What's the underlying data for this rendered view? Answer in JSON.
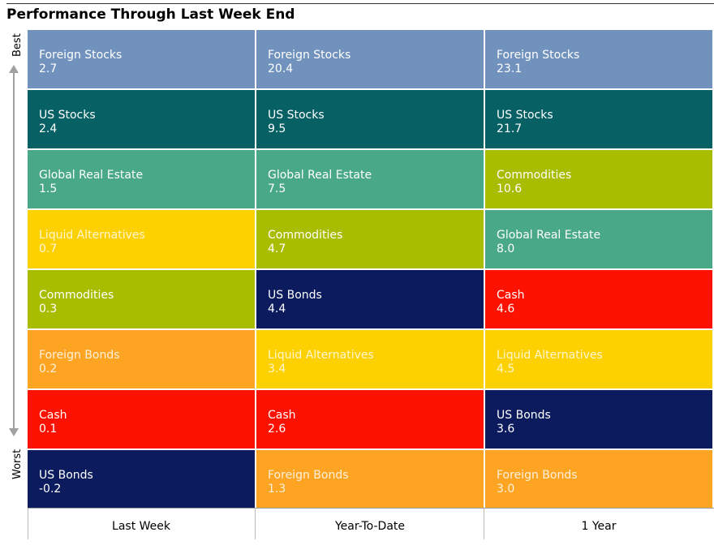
{
  "title": "Performance Through Last Week End",
  "axis": {
    "best_label": "Best",
    "worst_label": "Worst"
  },
  "chart_data": {
    "type": "table",
    "title": "Performance Through Last Week End",
    "columns": [
      "Last Week",
      "Year-To-Date",
      "1 Year"
    ],
    "rank_order": "best to worst",
    "rows": [
      [
        {
          "asset": "Foreign Stocks",
          "value": "2.7"
        },
        {
          "asset": "Foreign Stocks",
          "value": "20.4"
        },
        {
          "asset": "Foreign Stocks",
          "value": "23.1"
        }
      ],
      [
        {
          "asset": "US Stocks",
          "value": "2.4"
        },
        {
          "asset": "US Stocks",
          "value": "9.5"
        },
        {
          "asset": "US Stocks",
          "value": "21.7"
        }
      ],
      [
        {
          "asset": "Global Real Estate",
          "value": "1.5"
        },
        {
          "asset": "Global Real Estate",
          "value": "7.5"
        },
        {
          "asset": "Commodities",
          "value": "10.6"
        }
      ],
      [
        {
          "asset": "Liquid Alternatives",
          "value": "0.7"
        },
        {
          "asset": "Commodities",
          "value": "4.7"
        },
        {
          "asset": "Global Real Estate",
          "value": "8.0"
        }
      ],
      [
        {
          "asset": "Commodities",
          "value": "0.3"
        },
        {
          "asset": "US Bonds",
          "value": "4.4"
        },
        {
          "asset": "Cash",
          "value": "4.6"
        }
      ],
      [
        {
          "asset": "Foreign Bonds",
          "value": "0.2"
        },
        {
          "asset": "Liquid Alternatives",
          "value": "3.4"
        },
        {
          "asset": "Liquid Alternatives",
          "value": "4.5"
        }
      ],
      [
        {
          "asset": "Cash",
          "value": "0.1"
        },
        {
          "asset": "Cash",
          "value": "2.6"
        },
        {
          "asset": "US Bonds",
          "value": "3.6"
        }
      ],
      [
        {
          "asset": "US Bonds",
          "value": "-0.2"
        },
        {
          "asset": "Foreign Bonds",
          "value": "1.3"
        },
        {
          "asset": "Foreign Bonds",
          "value": "3.0"
        }
      ]
    ],
    "asset_colors": {
      "Foreign Stocks": "#7092bc",
      "US Stocks": "#066064",
      "Global Real Estate": "#48a888",
      "Liquid Alternatives": "#fdd000",
      "Commodities": "#a8bc00",
      "Foreign Bonds": "#fda522",
      "Cash": "#fd1100",
      "US Bonds": "#0c1b5e"
    },
    "asset_text_colors": {
      "Foreign Stocks": "#ffffff",
      "US Stocks": "#ffffff",
      "Global Real Estate": "#ffffff",
      "Liquid Alternatives": "#fff6d0",
      "Commodities": "#ffffff",
      "Foreign Bonds": "#fff0dc",
      "Cash": "#ffffff",
      "US Bonds": "#ffffff"
    }
  }
}
